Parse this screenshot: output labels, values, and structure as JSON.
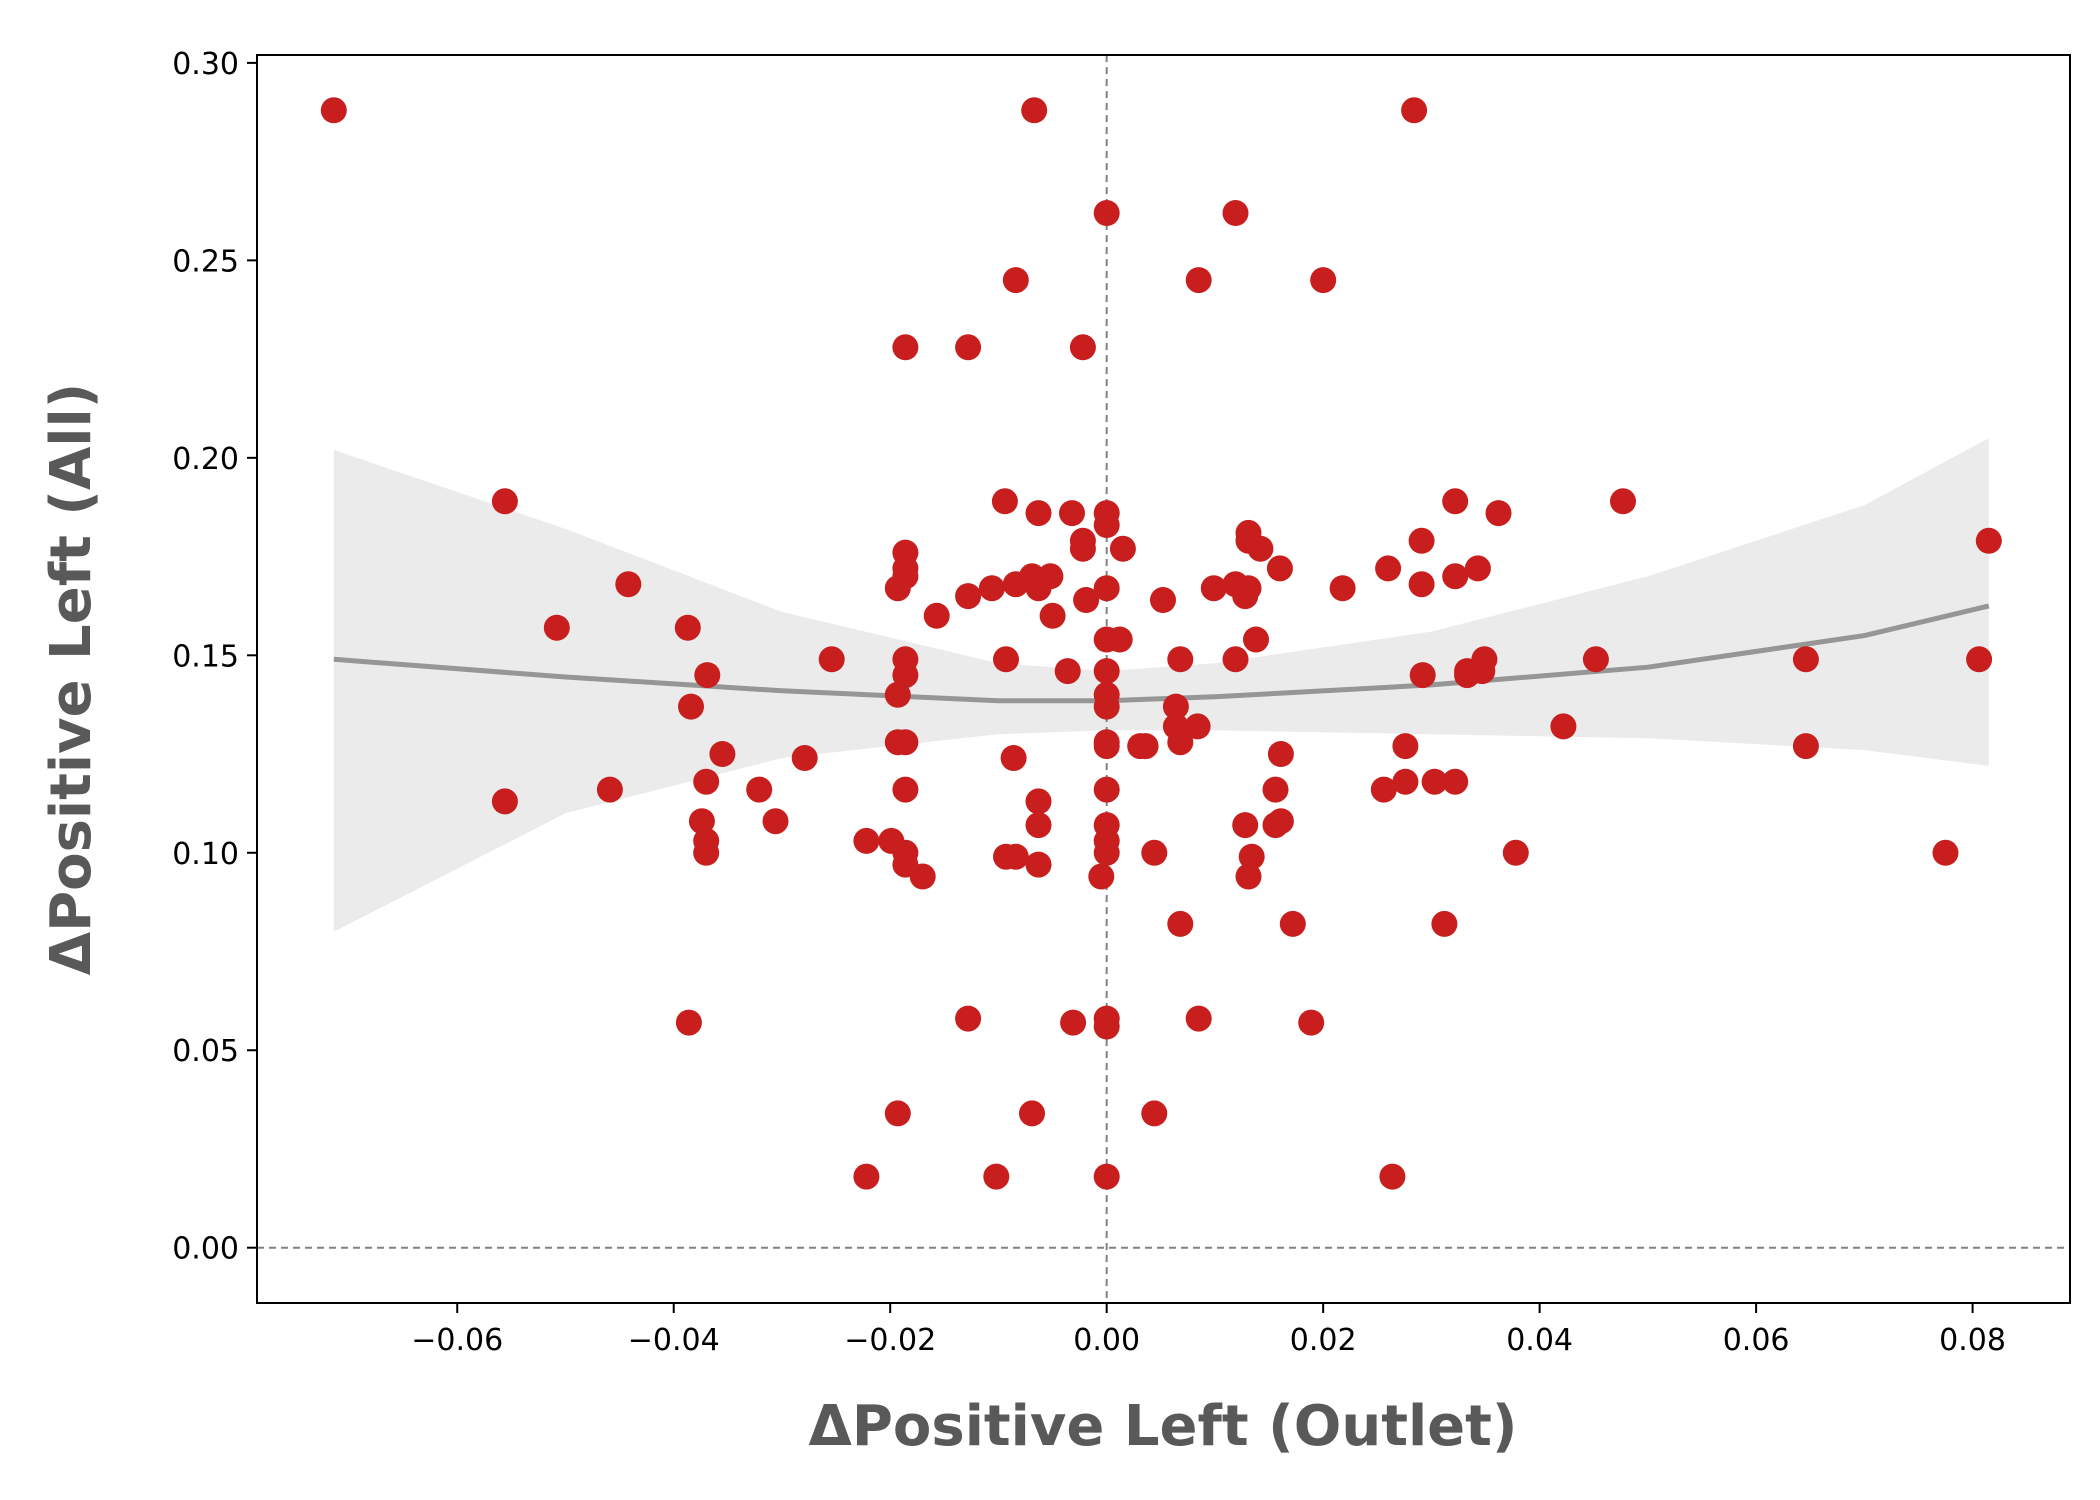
{
  "chart_data": {
    "type": "scatter",
    "xlabel": "ΔPositive Left  (Outlet)",
    "ylabel": "ΔPositive Left  (All)",
    "xlim": [
      -0.0785,
      0.089
    ],
    "ylim": [
      -0.014,
      0.302
    ],
    "x_ticks": [
      "−0.06",
      "−0.04",
      "−0.02",
      "0.00",
      "0.02",
      "0.04",
      "0.06",
      "0.08"
    ],
    "x_tick_values": [
      -0.06,
      -0.04,
      -0.02,
      0.0,
      0.02,
      0.04,
      0.06,
      0.08
    ],
    "y_ticks": [
      "0.00",
      "0.05",
      "0.10",
      "0.15",
      "0.20",
      "0.25",
      "0.30"
    ],
    "y_tick_values": [
      0.0,
      0.05,
      0.1,
      0.15,
      0.2,
      0.25,
      0.3
    ],
    "grid": false,
    "reference_lines": {
      "x": 0.0,
      "y": 0.0,
      "style": "dashed",
      "color": "#808080"
    },
    "colors": {
      "points": "#c81e1e",
      "fit_line": "#969696",
      "confidence_band": "#ebebeb"
    },
    "fit": {
      "type": "quadratic",
      "x": [
        -0.0714,
        -0.05,
        -0.03,
        -0.01,
        0.0,
        0.01,
        0.03,
        0.05,
        0.07,
        0.0815
      ],
      "y": [
        0.149,
        0.1445,
        0.141,
        0.1385,
        0.1385,
        0.1395,
        0.1425,
        0.147,
        0.155,
        0.1625
      ],
      "ci_lower": [
        0.08,
        0.11,
        0.124,
        0.13,
        0.131,
        0.131,
        0.13,
        0.129,
        0.126,
        0.122
      ],
      "ci_upper": [
        0.202,
        0.182,
        0.161,
        0.148,
        0.146,
        0.148,
        0.156,
        0.17,
        0.188,
        0.205
      ]
    },
    "points": [
      [
        -0.0714,
        0.288
      ],
      [
        -0.0067,
        0.288
      ],
      [
        0.0284,
        0.288
      ],
      [
        0.0,
        0.262
      ],
      [
        0.0119,
        0.262
      ],
      [
        -0.0084,
        0.245
      ],
      [
        0.0085,
        0.245
      ],
      [
        0.02,
        0.245
      ],
      [
        -0.0186,
        0.228
      ],
      [
        -0.0128,
        0.228
      ],
      [
        -0.0022,
        0.228
      ],
      [
        -0.0556,
        0.189
      ],
      [
        -0.0094,
        0.189
      ],
      [
        0.0322,
        0.189
      ],
      [
        0.0477,
        0.189
      ],
      [
        -0.0063,
        0.186
      ],
      [
        -0.0032,
        0.186
      ],
      [
        0.0,
        0.186
      ],
      [
        0.0362,
        0.186
      ],
      [
        -0.0022,
        0.179
      ],
      [
        0.0,
        0.183
      ],
      [
        0.0131,
        0.181
      ],
      [
        0.0291,
        0.179
      ],
      [
        0.0815,
        0.179
      ],
      [
        -0.0022,
        0.177
      ],
      [
        0.0015,
        0.177
      ],
      [
        -0.0186,
        0.176
      ],
      [
        0.0131,
        0.179
      ],
      [
        0.0142,
        0.177
      ],
      [
        -0.0186,
        0.172
      ],
      [
        0.016,
        0.172
      ],
      [
        0.026,
        0.172
      ],
      [
        0.0343,
        0.172
      ],
      [
        -0.0186,
        0.17
      ],
      [
        -0.0069,
        0.17
      ],
      [
        -0.0052,
        0.17
      ],
      [
        0.0322,
        0.17
      ],
      [
        -0.0442,
        0.168
      ],
      [
        -0.0084,
        0.168
      ],
      [
        0.0119,
        0.168
      ],
      [
        0.0291,
        0.168
      ],
      [
        -0.0193,
        0.167
      ],
      [
        -0.0106,
        0.167
      ],
      [
        -0.0063,
        0.167
      ],
      [
        0.0,
        0.167
      ],
      [
        0.0099,
        0.167
      ],
      [
        0.0131,
        0.167
      ],
      [
        -0.0128,
        0.165
      ],
      [
        -0.0019,
        0.164
      ],
      [
        0.0052,
        0.164
      ],
      [
        0.0128,
        0.165
      ],
      [
        0.0218,
        0.167
      ],
      [
        -0.0157,
        0.16
      ],
      [
        -0.005,
        0.16
      ],
      [
        -0.0508,
        0.157
      ],
      [
        -0.0387,
        0.157
      ],
      [
        0.0,
        0.154
      ],
      [
        0.0012,
        0.154
      ],
      [
        0.0138,
        0.154
      ],
      [
        -0.0254,
        0.149
      ],
      [
        -0.0186,
        0.149
      ],
      [
        -0.0093,
        0.149
      ],
      [
        0.0068,
        0.149
      ],
      [
        0.0119,
        0.149
      ],
      [
        0.0349,
        0.149
      ],
      [
        0.0452,
        0.149
      ],
      [
        0.0646,
        0.149
      ],
      [
        0.0806,
        0.149
      ],
      [
        -0.0369,
        0.145
      ],
      [
        -0.0186,
        0.145
      ],
      [
        -0.0036,
        0.146
      ],
      [
        0.0,
        0.146
      ],
      [
        0.0292,
        0.145
      ],
      [
        0.0333,
        0.145
      ],
      [
        0.0347,
        0.146
      ],
      [
        0.0333,
        0.146
      ],
      [
        -0.0193,
        0.14
      ],
      [
        0.0,
        0.14
      ],
      [
        -0.0384,
        0.137
      ],
      [
        0.0,
        0.137
      ],
      [
        0.0064,
        0.137
      ],
      [
        0.0064,
        0.132
      ],
      [
        0.0084,
        0.132
      ],
      [
        0.0422,
        0.132
      ],
      [
        -0.0193,
        0.128
      ],
      [
        -0.0186,
        0.128
      ],
      [
        0.0,
        0.128
      ],
      [
        0.0068,
        0.128
      ],
      [
        0.0,
        0.127
      ],
      [
        0.0031,
        0.127
      ],
      [
        0.0036,
        0.127
      ],
      [
        0.0276,
        0.127
      ],
      [
        0.0646,
        0.127
      ],
      [
        -0.0355,
        0.125
      ],
      [
        -0.0279,
        0.124
      ],
      [
        -0.0086,
        0.124
      ],
      [
        0.0161,
        0.125
      ],
      [
        -0.037,
        0.118
      ],
      [
        0.0276,
        0.118
      ],
      [
        0.0303,
        0.118
      ],
      [
        0.0322,
        0.118
      ],
      [
        -0.0459,
        0.116
      ],
      [
        -0.0321,
        0.116
      ],
      [
        -0.0186,
        0.116
      ],
      [
        0.0,
        0.116
      ],
      [
        0.0156,
        0.116
      ],
      [
        0.0256,
        0.116
      ],
      [
        -0.0556,
        0.113
      ],
      [
        -0.0063,
        0.113
      ],
      [
        -0.0374,
        0.108
      ],
      [
        -0.0306,
        0.108
      ],
      [
        -0.0063,
        0.107
      ],
      [
        0.0,
        0.107
      ],
      [
        0.0128,
        0.107
      ],
      [
        0.0161,
        0.108
      ],
      [
        0.0156,
        0.107
      ],
      [
        -0.037,
        0.103
      ],
      [
        -0.0222,
        0.103
      ],
      [
        -0.0199,
        0.103
      ],
      [
        0.0,
        0.103
      ],
      [
        -0.037,
        0.1
      ],
      [
        -0.0186,
        0.1
      ],
      [
        0.0,
        0.1
      ],
      [
        0.0044,
        0.1
      ],
      [
        0.0378,
        0.1
      ],
      [
        0.0775,
        0.1
      ],
      [
        -0.0093,
        0.099
      ],
      [
        -0.0084,
        0.099
      ],
      [
        0.0134,
        0.099
      ],
      [
        -0.0186,
        0.097
      ],
      [
        -0.0063,
        0.097
      ],
      [
        -0.017,
        0.094
      ],
      [
        -0.0005,
        0.094
      ],
      [
        0.0131,
        0.094
      ],
      [
        0.0068,
        0.082
      ],
      [
        0.0172,
        0.082
      ],
      [
        0.0312,
        0.082
      ],
      [
        -0.0128,
        0.058
      ],
      [
        0.0,
        0.058
      ],
      [
        0.0085,
        0.058
      ],
      [
        -0.0386,
        0.057
      ],
      [
        -0.0031,
        0.057
      ],
      [
        0.0,
        0.056
      ],
      [
        0.0189,
        0.057
      ],
      [
        -0.0193,
        0.034
      ],
      [
        -0.0069,
        0.034
      ],
      [
        0.0044,
        0.034
      ],
      [
        -0.0222,
        0.018
      ],
      [
        -0.0102,
        0.018
      ],
      [
        0.0,
        0.018
      ],
      [
        0.0264,
        0.018
      ]
    ]
  }
}
